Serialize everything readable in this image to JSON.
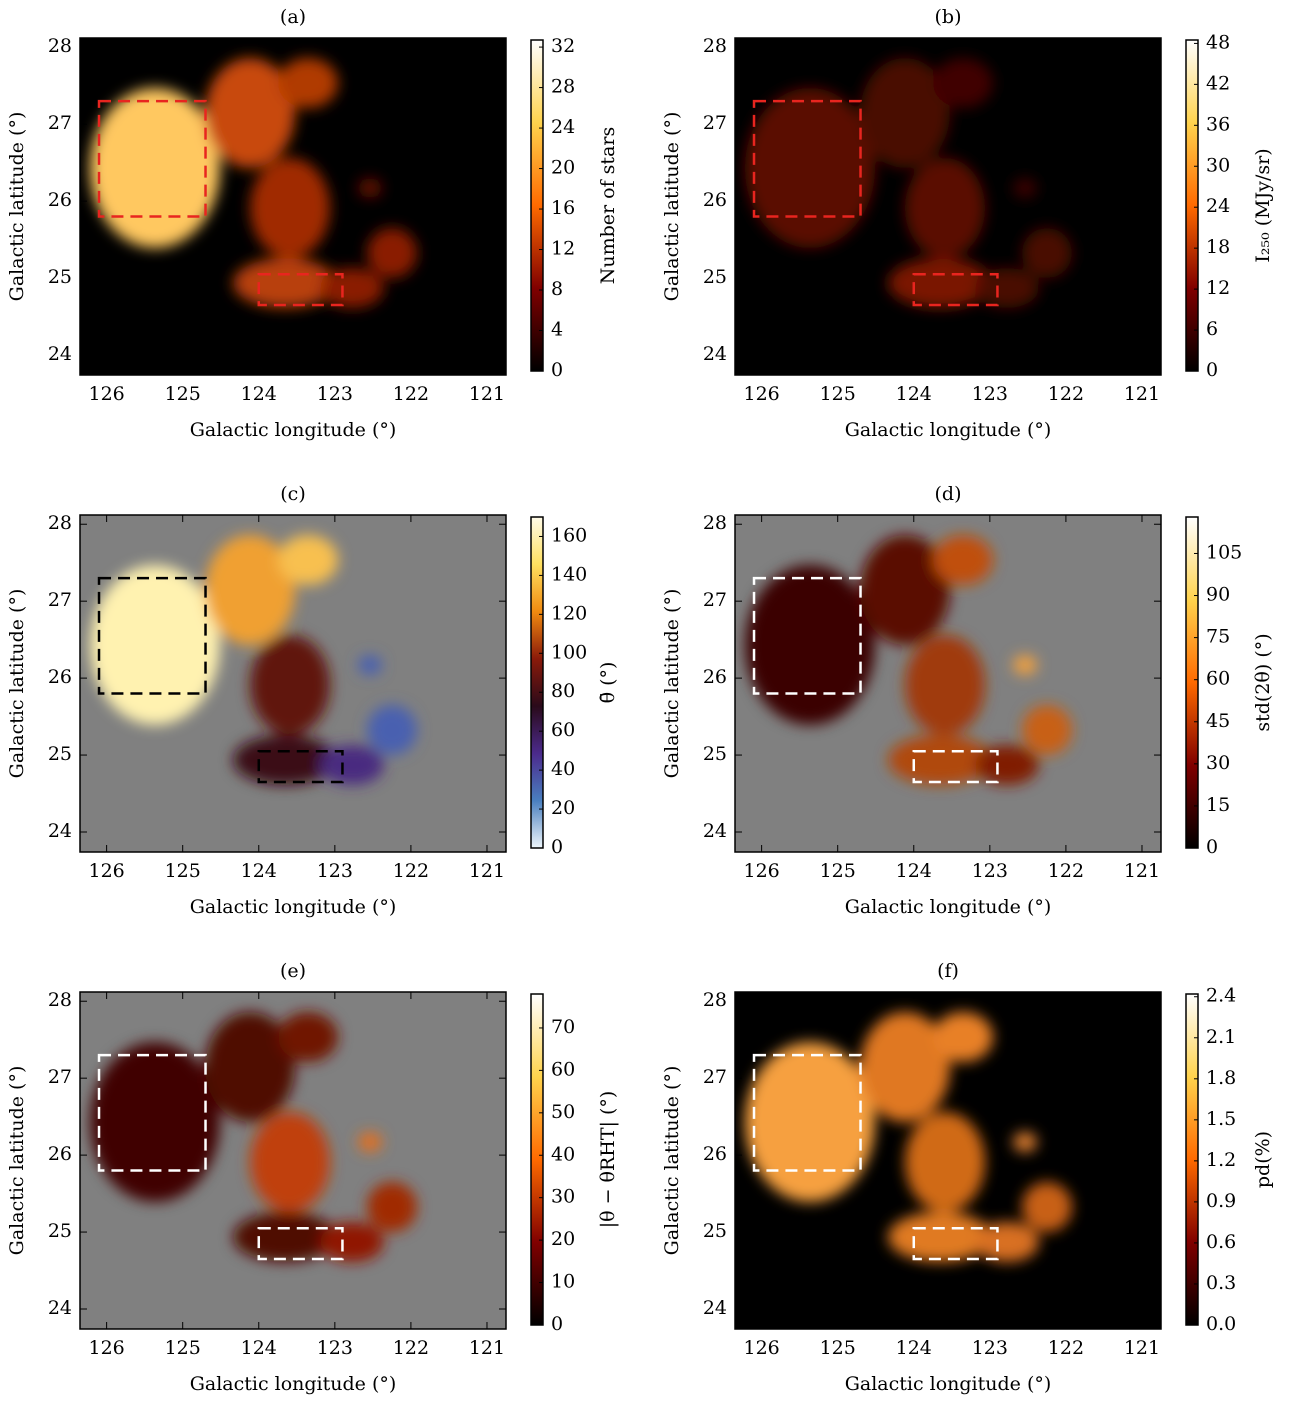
{
  "chart_data": [
    {
      "type": "heatmap",
      "title": "(a)",
      "x_label": "Galactic longitude (°)",
      "y_label": "Galactic latitude (°)",
      "colorbar_label": "Number of stars",
      "xlim": [
        126.35,
        120.75
      ],
      "ylim": [
        23.74,
        28.12
      ],
      "xticks": [
        126,
        125,
        124,
        123,
        122,
        121
      ],
      "yticks": [
        24,
        25,
        26,
        27,
        28
      ],
      "clim": [
        0,
        32.7
      ],
      "cticks": [
        0,
        4,
        8,
        12,
        16,
        20,
        24,
        28,
        32
      ],
      "colormap": [
        "#000000",
        "#800000",
        "#ff6a00",
        "#ffd34d",
        "#ffffff"
      ],
      "background": "#000000",
      "box_color": "#e8251f",
      "regions": [
        {
          "lon": [
            126.1,
            124.7
          ],
          "lat": [
            25.8,
            27.3
          ]
        },
        {
          "lon": [
            124.0,
            122.9
          ],
          "lat": [
            24.65,
            25.05
          ]
        }
      ]
    },
    {
      "type": "heatmap",
      "title": "(b)",
      "x_label": "Galactic longitude (°)",
      "y_label": "Galactic latitude (°)",
      "colorbar_label": "I₂₅₀ (MJy/sr)",
      "xlim": [
        126.35,
        120.75
      ],
      "ylim": [
        23.74,
        28.12
      ],
      "xticks": [
        126,
        125,
        124,
        123,
        122,
        121
      ],
      "yticks": [
        24,
        25,
        26,
        27,
        28
      ],
      "clim": [
        0,
        48.5
      ],
      "cticks": [
        0,
        6,
        12,
        18,
        24,
        30,
        36,
        42,
        48
      ],
      "colormap": [
        "#000000",
        "#800000",
        "#ff6a00",
        "#ffd34d",
        "#ffffff"
      ],
      "background": "#000000",
      "box_color": "#e8251f",
      "regions": [
        {
          "lon": [
            126.1,
            124.7
          ],
          "lat": [
            25.8,
            27.3
          ]
        },
        {
          "lon": [
            124.0,
            122.9
          ],
          "lat": [
            24.65,
            25.05
          ]
        }
      ]
    },
    {
      "type": "heatmap",
      "title": "(c)",
      "x_label": "Galactic longitude (°)",
      "y_label": "Galactic latitude (°)",
      "colorbar_label": "θ̄ (°)",
      "xlim": [
        126.35,
        120.75
      ],
      "ylim": [
        23.74,
        28.12
      ],
      "xticks": [
        126,
        125,
        124,
        123,
        122,
        121
      ],
      "yticks": [
        24,
        25,
        26,
        27,
        28
      ],
      "clim": [
        0,
        170
      ],
      "cticks": [
        0,
        20,
        40,
        60,
        80,
        100,
        120,
        140,
        160
      ],
      "colormap": [
        "#eef6fb",
        "#4a7fbf",
        "#4b2a8c",
        "#2a0a1a",
        "#8a1a0a",
        "#f08a10",
        "#ffe060",
        "#fffbe8"
      ],
      "background": "#808080",
      "box_color": "#000000",
      "regions": [
        {
          "lon": [
            126.1,
            124.7
          ],
          "lat": [
            25.8,
            27.3
          ]
        },
        {
          "lon": [
            124.0,
            122.9
          ],
          "lat": [
            24.65,
            25.05
          ]
        }
      ]
    },
    {
      "type": "heatmap",
      "title": "(d)",
      "x_label": "Galactic longitude (°)",
      "y_label": "Galactic latitude (°)",
      "colorbar_label": "std(2θ) (°)",
      "xlim": [
        126.35,
        120.75
      ],
      "ylim": [
        23.74,
        28.12
      ],
      "xticks": [
        126,
        125,
        124,
        123,
        122,
        121
      ],
      "yticks": [
        24,
        25,
        26,
        27,
        28
      ],
      "clim": [
        0,
        118
      ],
      "cticks": [
        0,
        15,
        30,
        45,
        60,
        75,
        90,
        105
      ],
      "colormap": [
        "#000000",
        "#800000",
        "#ff6a00",
        "#ffd34d",
        "#ffffff"
      ],
      "background": "#808080",
      "box_color": "#ffffff",
      "regions": [
        {
          "lon": [
            126.1,
            124.7
          ],
          "lat": [
            25.8,
            27.3
          ]
        },
        {
          "lon": [
            124.0,
            122.9
          ],
          "lat": [
            24.65,
            25.05
          ]
        }
      ]
    },
    {
      "type": "heatmap",
      "title": "(e)",
      "x_label": "Galactic longitude (°)",
      "y_label": "Galactic latitude (°)",
      "colorbar_label": "|θ − θRHT| (°)",
      "xlim": [
        126.35,
        120.75
      ],
      "ylim": [
        23.74,
        28.12
      ],
      "xticks": [
        126,
        125,
        124,
        123,
        122,
        121
      ],
      "yticks": [
        24,
        25,
        26,
        27,
        28
      ],
      "clim": [
        0,
        78
      ],
      "cticks": [
        0,
        10,
        20,
        30,
        40,
        50,
        60,
        70
      ],
      "colormap": [
        "#000000",
        "#800000",
        "#ff6a00",
        "#ffd34d",
        "#ffffff"
      ],
      "background": "#808080",
      "box_color": "#ffffff",
      "regions": [
        {
          "lon": [
            126.1,
            124.7
          ],
          "lat": [
            25.8,
            27.3
          ]
        },
        {
          "lon": [
            124.0,
            122.9
          ],
          "lat": [
            24.65,
            25.05
          ]
        }
      ]
    },
    {
      "type": "heatmap",
      "title": "(f)",
      "x_label": "Galactic longitude (°)",
      "y_label": "Galactic latitude (°)",
      "colorbar_label": "pd(%)",
      "xlim": [
        126.35,
        120.75
      ],
      "ylim": [
        23.74,
        28.12
      ],
      "xticks": [
        126,
        125,
        124,
        123,
        122,
        121
      ],
      "yticks": [
        24,
        25,
        26,
        27,
        28
      ],
      "clim": [
        0,
        2.42
      ],
      "cticks": [
        {
          "value": 0,
          "label": "0.0"
        },
        0.3,
        0.6,
        0.9,
        1.2,
        1.5,
        1.8,
        2.1,
        2.4
      ],
      "colormap": [
        "#000000",
        "#800000",
        "#ff6a00",
        "#ffd34d",
        "#ffffff"
      ],
      "background": "#000000",
      "box_color": "#ffffff",
      "regions": [
        {
          "lon": [
            126.1,
            124.7
          ],
          "lat": [
            25.8,
            27.3
          ]
        },
        {
          "lon": [
            124.0,
            122.9
          ],
          "lat": [
            24.65,
            25.05
          ]
        }
      ]
    }
  ]
}
